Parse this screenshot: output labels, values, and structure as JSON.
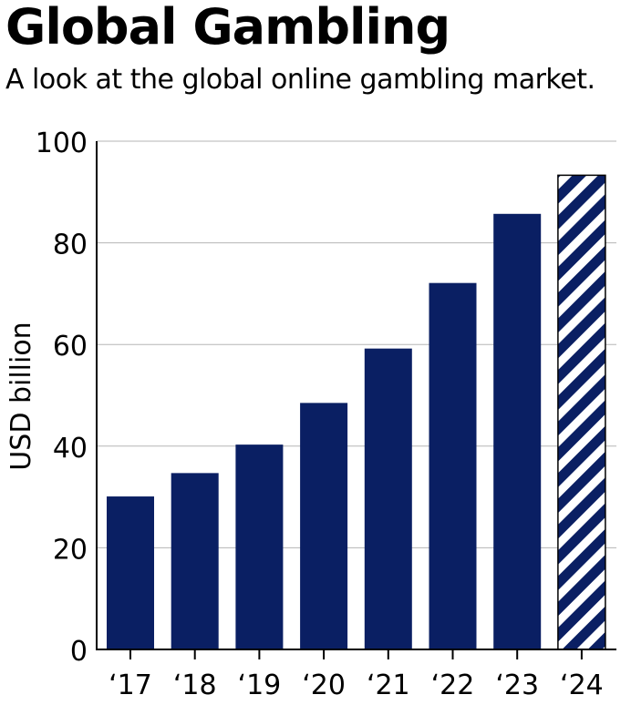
{
  "header": {
    "title": "Global Gambling",
    "subtitle": "A look at the global online gambling market."
  },
  "chart_data": {
    "type": "bar",
    "categories": [
      "‘17",
      "‘18",
      "‘19",
      "‘20",
      "‘21",
      "‘22",
      "‘23",
      "‘24"
    ],
    "values": [
      30.1,
      34.7,
      40.3,
      48.5,
      59.2,
      72.1,
      85.7,
      93.3
    ],
    "projected": [
      false,
      false,
      false,
      false,
      false,
      false,
      false,
      true
    ],
    "title": "Global Gambling",
    "subtitle": "A look at the global online gambling market.",
    "xlabel": "",
    "ylabel": "USD billion",
    "ylim": [
      0,
      100
    ],
    "yticks": [
      0,
      20,
      40,
      60,
      80,
      100
    ],
    "grid": true,
    "bar_color": "#0a1f63",
    "projection_pattern": "diagonal-stripes"
  }
}
